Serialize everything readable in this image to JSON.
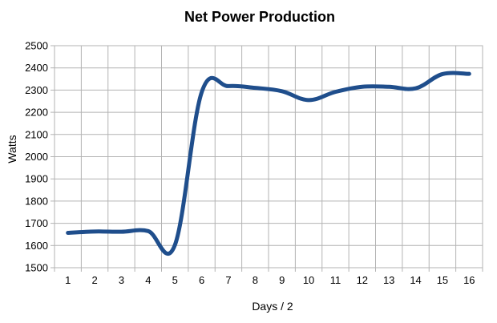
{
  "chart_data": {
    "type": "line",
    "title": "Net Power Production",
    "xlabel": "Days / 2",
    "ylabel": "Watts",
    "x": [
      1,
      2,
      3,
      4,
      5,
      6,
      7,
      8,
      9,
      10,
      11,
      12,
      13,
      14,
      15,
      16
    ],
    "series": [
      {
        "values": [
          1657,
          1663,
          1662,
          1665,
          1602,
          2290,
          2318,
          2310,
          2295,
          2255,
          2292,
          2315,
          2315,
          2308,
          2372,
          2373
        ]
      }
    ],
    "xlim": [
      0.5,
      16.5
    ],
    "ylim": [
      1500,
      2500
    ],
    "y_ticks": [
      1500,
      1600,
      1700,
      1800,
      1900,
      2000,
      2100,
      2200,
      2300,
      2400,
      2500
    ],
    "x_ticks": [
      1,
      2,
      3,
      4,
      5,
      6,
      7,
      8,
      9,
      10,
      11,
      12,
      13,
      14,
      15,
      16
    ],
    "grid": true,
    "line_color": "#1f4e8c"
  }
}
